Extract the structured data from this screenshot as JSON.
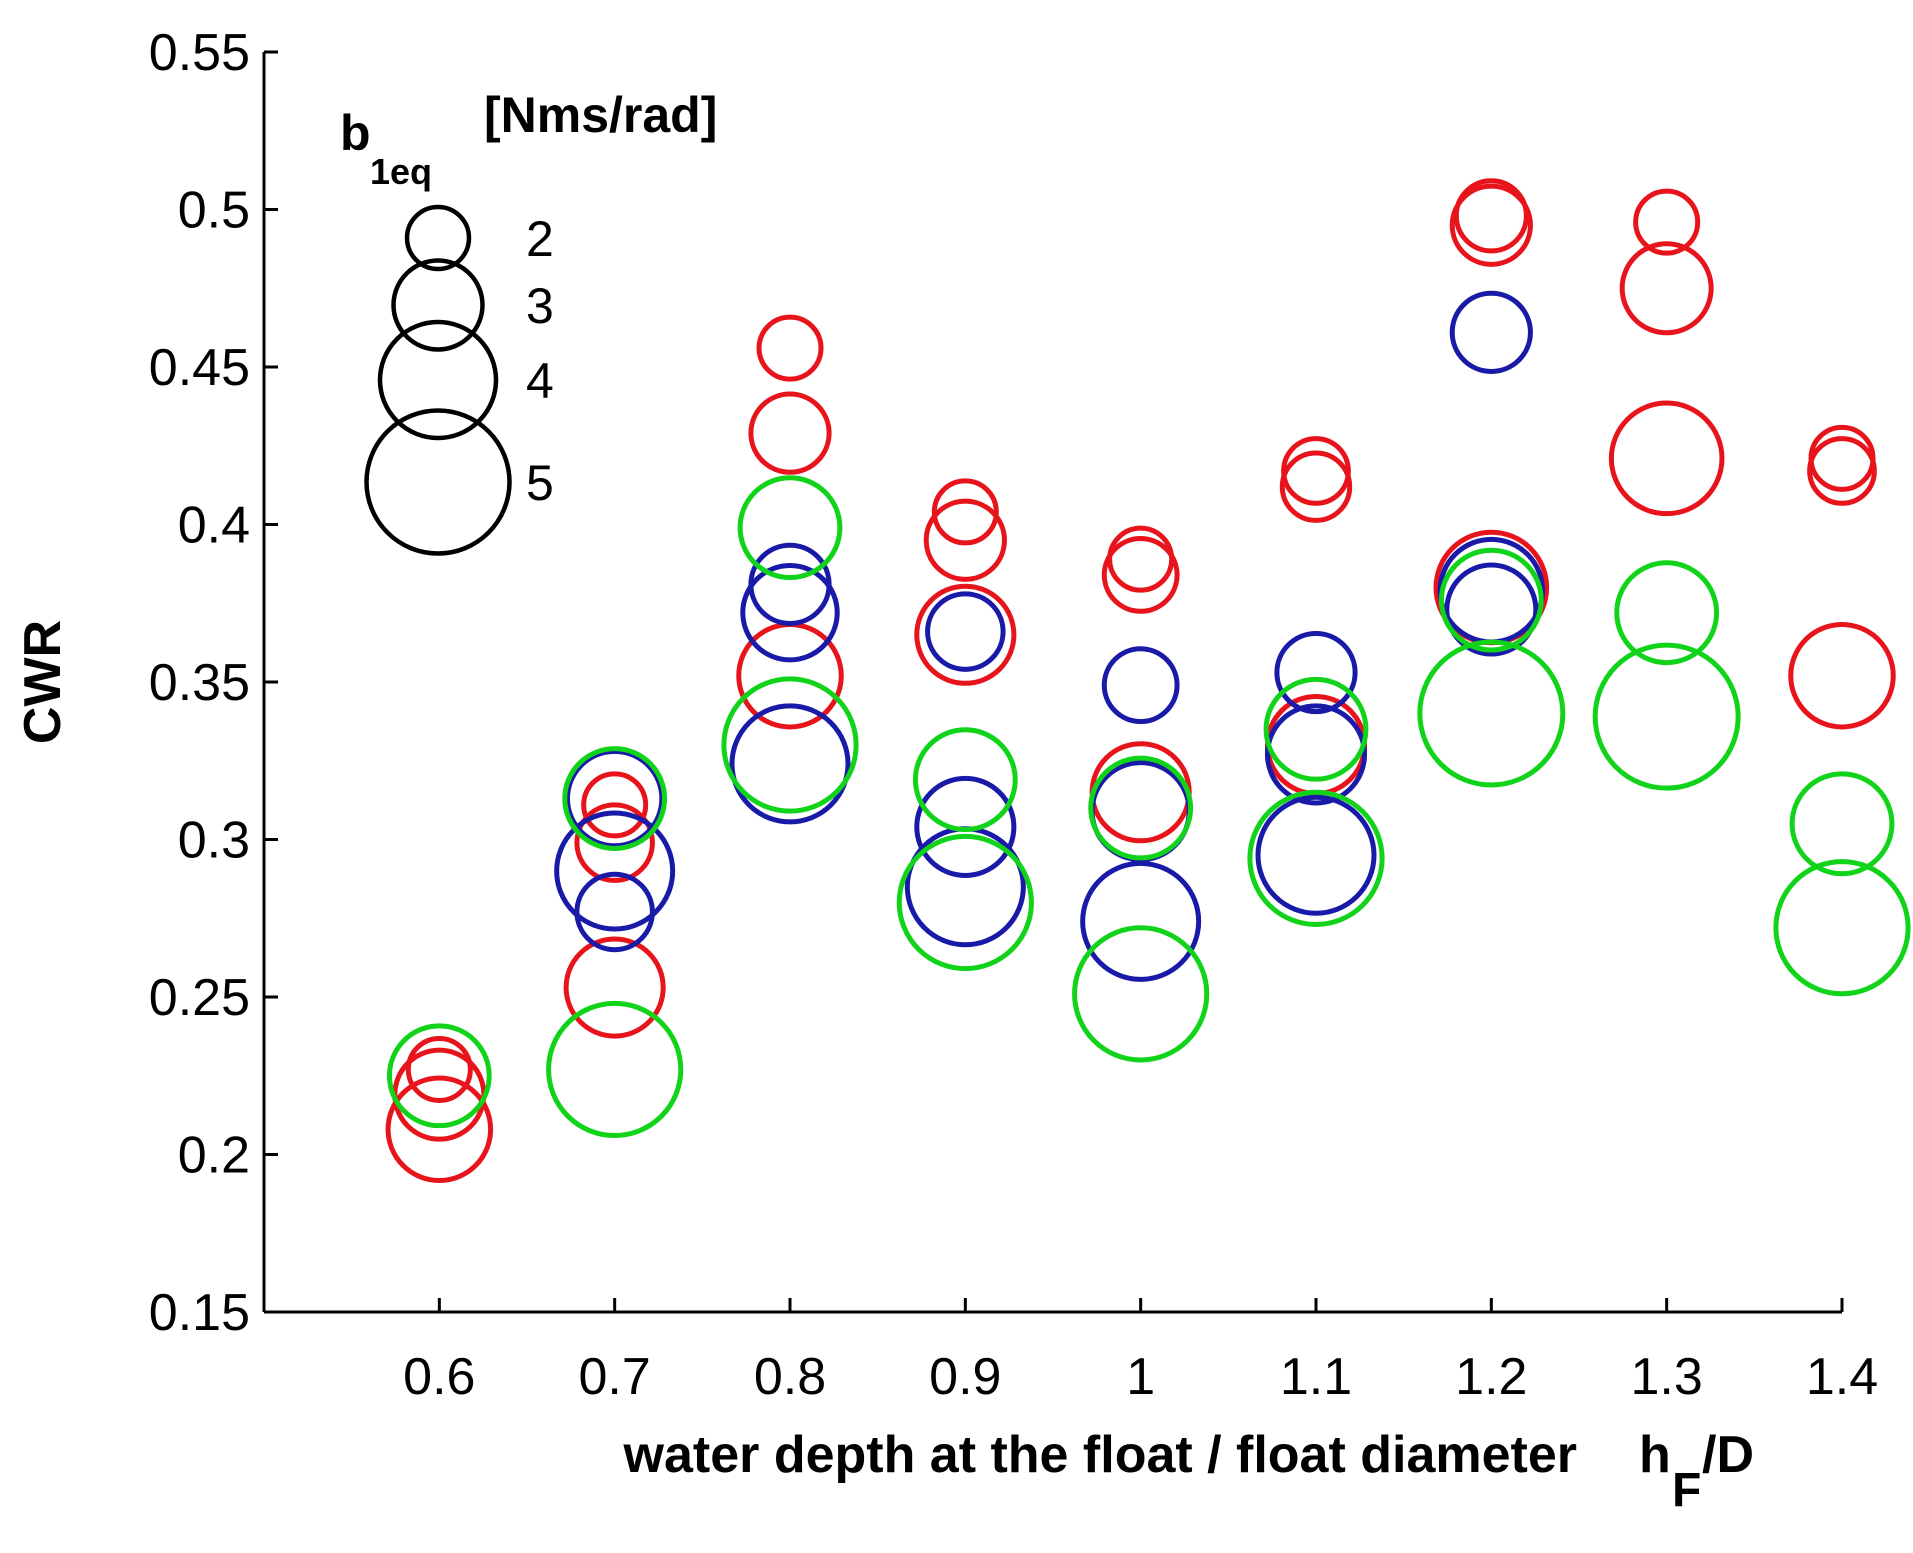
{
  "chart_data": {
    "type": "scatter",
    "xlabel": "water depth at the float / float diameter",
    "xlabel_symbol": "h",
    "xlabel_symbol_sub": "F",
    "xlabel_symbol_tail": "/D",
    "ylabel": "CWR",
    "xlim": [
      0.5,
      1.4
    ],
    "ylim": [
      0.15,
      0.55
    ],
    "xticks": [
      "0.6",
      "0.7",
      "0.8",
      "0.9",
      "1",
      "1.1",
      "1.2",
      "1.3",
      "1.4"
    ],
    "yticks": [
      "0.15",
      "0.2",
      "0.25",
      "0.3",
      "0.35",
      "0.4",
      "0.45",
      "0.5",
      "0.55"
    ],
    "size_legend": {
      "title": "b",
      "title_sub": "1eq",
      "title_tail": "[Nms/rad]",
      "entries": [
        {
          "value": 2,
          "label": "2"
        },
        {
          "value": 3,
          "label": "3"
        },
        {
          "value": 4,
          "label": "4"
        },
        {
          "value": 5,
          "label": "5"
        }
      ]
    },
    "colors": {
      "red": "#e8141b",
      "blue": "#1a1aa8",
      "green": "#11d41a",
      "axis": "#000000"
    },
    "series": [
      {
        "color": "red",
        "points": [
          [
            0.6,
            0.227,
            2
          ],
          [
            0.6,
            0.219,
            3
          ],
          [
            0.6,
            0.208,
            3.5
          ],
          [
            0.7,
            0.311,
            2
          ],
          [
            0.7,
            0.299,
            2.5
          ],
          [
            0.7,
            0.253,
            3.3
          ],
          [
            0.8,
            0.456,
            2
          ],
          [
            0.8,
            0.429,
            2.6
          ],
          [
            0.8,
            0.352,
            3.5
          ],
          [
            0.9,
            0.404,
            2
          ],
          [
            0.9,
            0.395,
            2.6
          ],
          [
            0.9,
            0.365,
            3.3
          ],
          [
            1.0,
            0.389,
            2
          ],
          [
            1.0,
            0.384,
            2.4
          ],
          [
            1.0,
            0.315,
            3.3
          ],
          [
            1.1,
            0.417,
            2.1
          ],
          [
            1.1,
            0.412,
            2.2
          ],
          [
            1.1,
            0.33,
            3.3
          ],
          [
            1.2,
            0.498,
            2.3
          ],
          [
            1.2,
            0.495,
            2.6
          ],
          [
            1.2,
            0.38,
            3.8
          ],
          [
            1.3,
            0.496,
            2
          ],
          [
            1.3,
            0.475,
            3
          ],
          [
            1.3,
            0.421,
            3.8
          ],
          [
            1.4,
            0.421,
            2
          ],
          [
            1.4,
            0.417,
            2.1
          ],
          [
            1.4,
            0.352,
            3.5
          ]
        ]
      },
      {
        "color": "blue",
        "points": [
          [
            0.7,
            0.313,
            3.2
          ],
          [
            0.7,
            0.29,
            4
          ],
          [
            0.7,
            0.277,
            2.5
          ],
          [
            0.8,
            0.381,
            2.6
          ],
          [
            0.8,
            0.372,
            3.2
          ],
          [
            0.8,
            0.324,
            4
          ],
          [
            0.9,
            0.366,
            2.5
          ],
          [
            0.9,
            0.304,
            3.3
          ],
          [
            0.9,
            0.285,
            4
          ],
          [
            1.0,
            0.349,
            2.4
          ],
          [
            1.0,
            0.309,
            3.3
          ],
          [
            1.0,
            0.274,
            4
          ],
          [
            1.1,
            0.353,
            2.6
          ],
          [
            1.1,
            0.327,
            3.3
          ],
          [
            1.1,
            0.295,
            4
          ],
          [
            1.2,
            0.461,
            2.6
          ],
          [
            1.2,
            0.379,
            3.5
          ],
          [
            1.2,
            0.373,
            3
          ]
        ]
      },
      {
        "color": "green",
        "points": [
          [
            0.6,
            0.225,
            3.4
          ],
          [
            0.7,
            0.313,
            3.4
          ],
          [
            0.7,
            0.227,
            4.6
          ],
          [
            0.8,
            0.399,
            3.4
          ],
          [
            0.8,
            0.33,
            4.6
          ],
          [
            0.9,
            0.319,
            3.4
          ],
          [
            0.9,
            0.28,
            4.6
          ],
          [
            1.0,
            0.31,
            3.4
          ],
          [
            1.0,
            0.251,
            4.6
          ],
          [
            1.1,
            0.335,
            3.4
          ],
          [
            1.1,
            0.294,
            4.6
          ],
          [
            1.2,
            0.376,
            3.4
          ],
          [
            1.2,
            0.34,
            5
          ],
          [
            1.3,
            0.372,
            3.4
          ],
          [
            1.3,
            0.339,
            5
          ],
          [
            1.4,
            0.305,
            3.4
          ],
          [
            1.4,
            0.272,
            4.6
          ]
        ]
      }
    ]
  }
}
